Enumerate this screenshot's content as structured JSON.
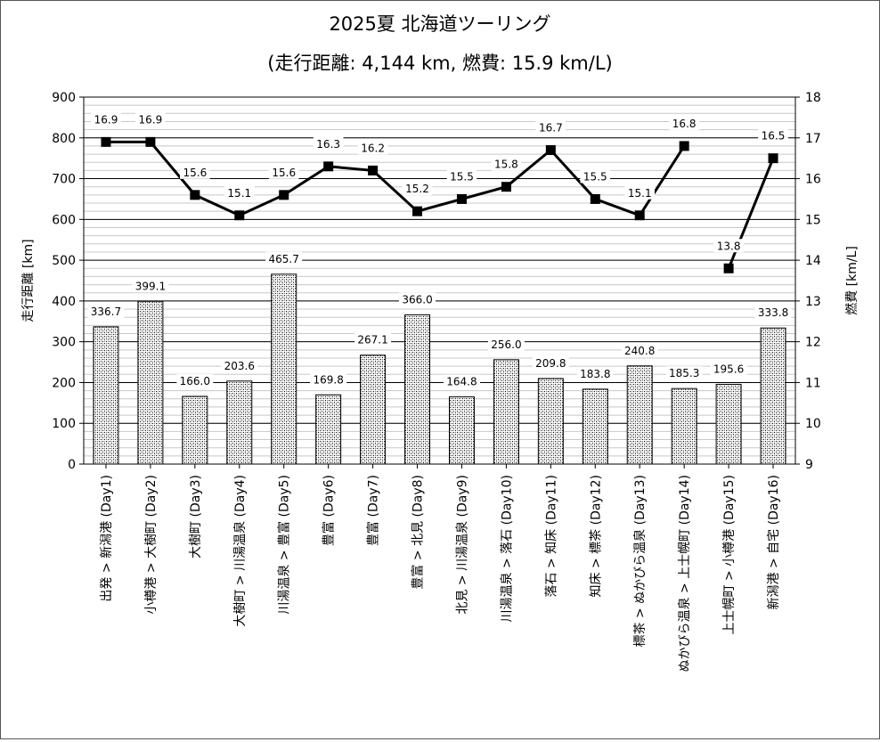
{
  "chart_data": {
    "type": "bar+line",
    "title": "2025夏 北海道ツーリング",
    "subtitle": "(走行距離: 4,144 km, 燃費: 15.9 km/L)",
    "ylabel_left": "走行距離 [km]",
    "ylabel_right": "燃費 [km/L]",
    "ylim_left": [
      0,
      900
    ],
    "ylim_right": [
      9,
      18
    ],
    "yticks_left": [
      "0",
      "100",
      "200",
      "300",
      "400",
      "500",
      "600",
      "700",
      "800",
      "900"
    ],
    "yticks_right": [
      "9",
      "10",
      "11",
      "12",
      "13",
      "14",
      "15",
      "16",
      "17",
      "18"
    ],
    "grid": true,
    "categories": [
      "出発 > 新潟港 (Day1)",
      "小樽港 > 大樹町 (Day2)",
      "大樹町 (Day3)",
      "大樹町 > 川湯温泉 (Day4)",
      "川湯温泉 > 豊富 (Day5)",
      "豊富 (Day6)",
      "豊富 (Day7)",
      "豊富 > 北見 (Day8)",
      "北見 > 川湯温泉 (Day9)",
      "川湯温泉 > 落石 (Day10)",
      "落石 > 知床 (Day11)",
      "知床 > 標茶 (Day12)",
      "標茶 > ぬかびら温泉 (Day13)",
      "ぬかびら温泉 > 上士幌町 (Day14)",
      "上士幌町 > 小樽港 (Day15)",
      "新潟港 > 自宅 (Day16)"
    ],
    "series": [
      {
        "values": [
          336.7,
          399.1,
          166.0,
          203.6,
          465.7,
          169.8,
          267.1,
          366.0,
          164.8,
          256.0,
          209.8,
          183.8,
          240.8,
          185.3,
          195.6,
          333.8
        ],
        "labels": [
          "336.7",
          "399.1",
          "166.0",
          "203.6",
          "465.7",
          "169.8",
          "267.1",
          "366.0",
          "164.8",
          "256.0",
          "209.8",
          "183.8",
          "240.8",
          "185.3",
          "195.6",
          "333.8"
        ]
      },
      {
        "values": [
          16.9,
          16.9,
          15.6,
          15.1,
          15.6,
          16.3,
          16.2,
          15.2,
          15.5,
          15.8,
          16.7,
          15.5,
          15.1,
          16.8,
          13.8,
          16.5
        ],
        "labels": [
          "16.9",
          "16.9",
          "15.6",
          "15.1",
          "15.6",
          "16.3",
          "16.2",
          "15.2",
          "15.5",
          "15.8",
          "16.7",
          "15.5",
          "15.1",
          "16.8",
          "13.8",
          "16.5"
        ]
      }
    ],
    "segments": [
      [
        0,
        13
      ],
      [
        14,
        15
      ]
    ]
  }
}
